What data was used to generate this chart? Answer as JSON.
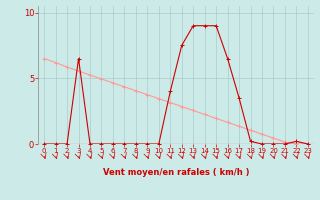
{
  "bg_color": "#cceae8",
  "grid_color": "#aacccc",
  "line_rafales_color": "#ff9999",
  "line_moyen_color": "#cc0000",
  "xlabel": "Vent moyen/en rafales ( km/h )",
  "ylim": [
    0,
    10.5
  ],
  "xlim": [
    -0.5,
    23.5
  ],
  "yticks": [
    0,
    5,
    10
  ],
  "xticks": [
    0,
    1,
    2,
    3,
    4,
    5,
    6,
    7,
    8,
    9,
    10,
    11,
    12,
    13,
    14,
    15,
    16,
    17,
    18,
    19,
    20,
    21,
    22,
    23
  ],
  "rafales_x": [
    0,
    1,
    2,
    3,
    4,
    5,
    6,
    7,
    8,
    9,
    10,
    11,
    12,
    13,
    14,
    15,
    16,
    17,
    18,
    19,
    20,
    21,
    22,
    23
  ],
  "rafales_y": [
    0,
    0,
    0,
    6.5,
    0,
    0,
    0,
    0,
    0,
    0,
    0,
    4.0,
    7.5,
    9.0,
    9.0,
    9.0,
    6.5,
    3.5,
    0.2,
    0,
    0,
    0,
    0.2,
    0
  ],
  "moyen_x": [
    0,
    1,
    2,
    3,
    4,
    5,
    6,
    7,
    8,
    9,
    10,
    11,
    12,
    13,
    14,
    15,
    16,
    17,
    18,
    19,
    20,
    21,
    22,
    23
  ],
  "moyen_y": [
    6.5,
    6.2,
    5.85,
    5.55,
    5.25,
    4.95,
    4.65,
    4.35,
    4.05,
    3.75,
    3.45,
    3.15,
    2.85,
    2.55,
    2.25,
    1.95,
    1.65,
    1.35,
    1.05,
    0.75,
    0.45,
    0.15,
    0.0,
    0.0
  ],
  "linewidth": 0.8,
  "markersize": 3
}
